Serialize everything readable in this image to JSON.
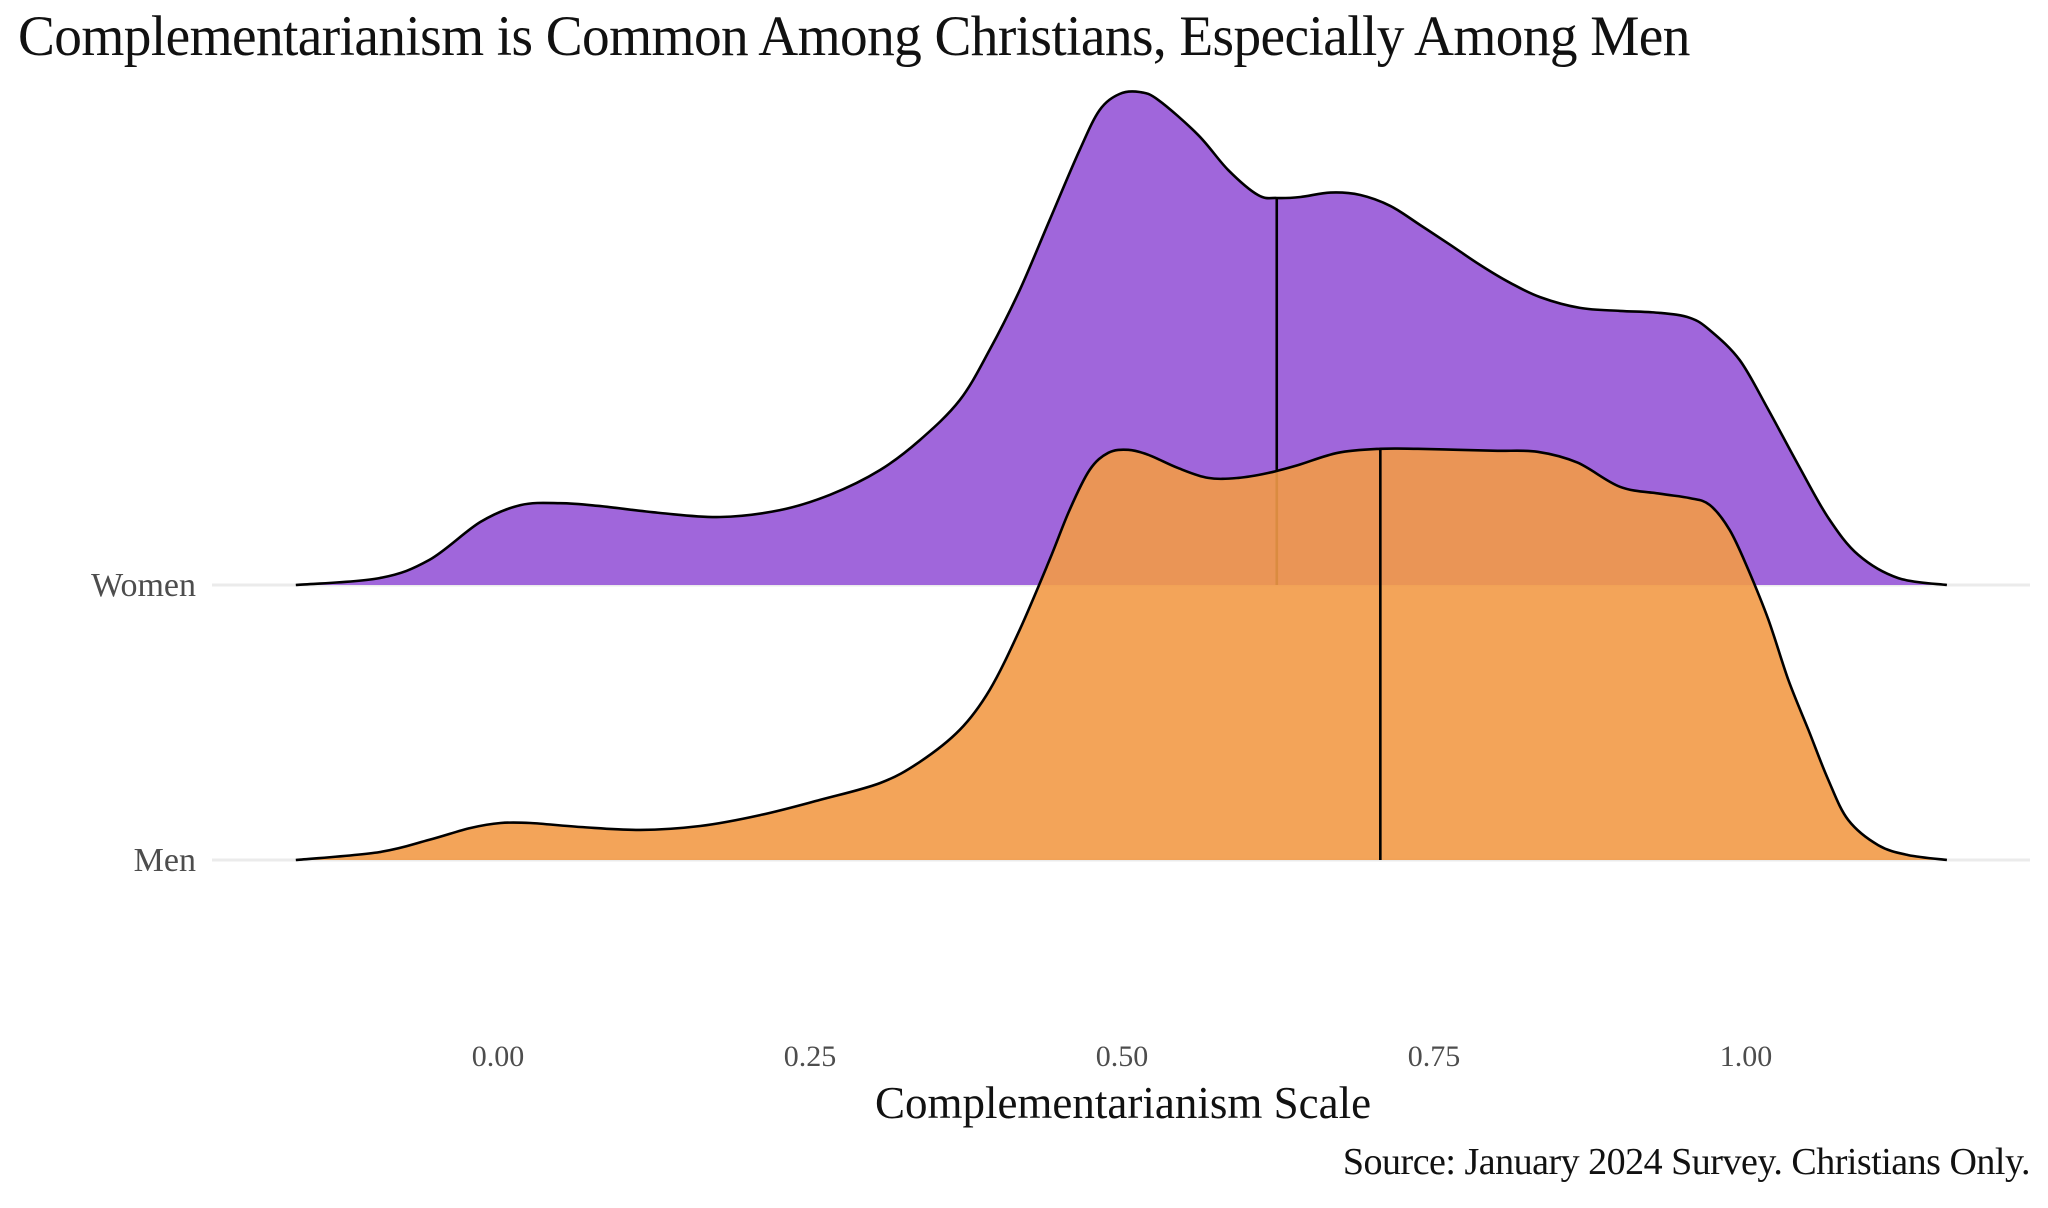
{
  "chart_data": {
    "type": "area",
    "subtype": "ridgeline-density",
    "title": "Complementarianism is Common Among Christians, Especially Among Men",
    "xlabel": "Complementarianism Scale",
    "ylabel": "",
    "caption": "Source: January 2024 Survey. Christians Only.",
    "xlim": [
      -0.162,
      1.161
    ],
    "x_ticks": [
      0.0,
      0.25,
      0.5,
      0.75,
      1.0
    ],
    "x_tick_labels": [
      "0.00",
      "0.25",
      "0.50",
      "0.75",
      "1.00"
    ],
    "grid": "horizontal baselines only",
    "legend": "none",
    "density_units": "relative (women peak = 1.0)",
    "series": [
      {
        "name": "Women",
        "color": "#A066DB",
        "median": 0.624,
        "x": [
          -0.162,
          -0.095,
          -0.055,
          -0.014,
          0.018,
          0.05,
          0.082,
          0.13,
          0.178,
          0.226,
          0.266,
          0.306,
          0.338,
          0.37,
          0.394,
          0.418,
          0.442,
          0.466,
          0.482,
          0.498,
          0.514,
          0.529,
          0.561,
          0.585,
          0.609,
          0.624,
          0.643,
          0.667,
          0.691,
          0.715,
          0.739,
          0.763,
          0.787,
          0.811,
          0.835,
          0.867,
          0.899,
          0.931,
          0.955,
          0.971,
          0.995,
          1.018,
          1.042,
          1.066,
          1.09,
          1.122,
          1.161
        ],
        "density": [
          0.0,
          0.014,
          0.051,
          0.128,
          0.162,
          0.166,
          0.16,
          0.146,
          0.138,
          0.152,
          0.183,
          0.233,
          0.294,
          0.375,
          0.477,
          0.598,
          0.74,
          0.882,
          0.963,
          0.996,
          1.0,
          0.984,
          0.913,
          0.842,
          0.791,
          0.785,
          0.787,
          0.796,
          0.791,
          0.769,
          0.73,
          0.69,
          0.649,
          0.613,
          0.584,
          0.562,
          0.556,
          0.552,
          0.542,
          0.517,
          0.456,
          0.355,
          0.243,
          0.136,
          0.061,
          0.014,
          0.0
        ]
      },
      {
        "name": "Men",
        "color": "#F29A47",
        "median": 0.707,
        "x": [
          -0.162,
          -0.095,
          -0.055,
          -0.022,
          0.002,
          0.026,
          0.066,
          0.114,
          0.162,
          0.21,
          0.258,
          0.306,
          0.338,
          0.37,
          0.394,
          0.418,
          0.442,
          0.458,
          0.474,
          0.489,
          0.505,
          0.521,
          0.545,
          0.569,
          0.593,
          0.617,
          0.641,
          0.673,
          0.707,
          0.737,
          0.769,
          0.801,
          0.833,
          0.865,
          0.899,
          0.931,
          0.955,
          0.971,
          0.987,
          1.002,
          1.018,
          1.034,
          1.05,
          1.066,
          1.082,
          1.106,
          1.13,
          1.161
        ],
        "density": [
          0.0,
          0.016,
          0.041,
          0.065,
          0.075,
          0.075,
          0.067,
          0.061,
          0.069,
          0.091,
          0.122,
          0.156,
          0.199,
          0.264,
          0.345,
          0.467,
          0.609,
          0.71,
          0.791,
          0.826,
          0.832,
          0.822,
          0.795,
          0.775,
          0.775,
          0.785,
          0.801,
          0.826,
          0.834,
          0.834,
          0.832,
          0.83,
          0.828,
          0.806,
          0.757,
          0.743,
          0.734,
          0.72,
          0.669,
          0.588,
          0.487,
          0.365,
          0.264,
          0.162,
          0.081,
          0.03,
          0.01,
          0.0
        ]
      }
    ]
  }
}
